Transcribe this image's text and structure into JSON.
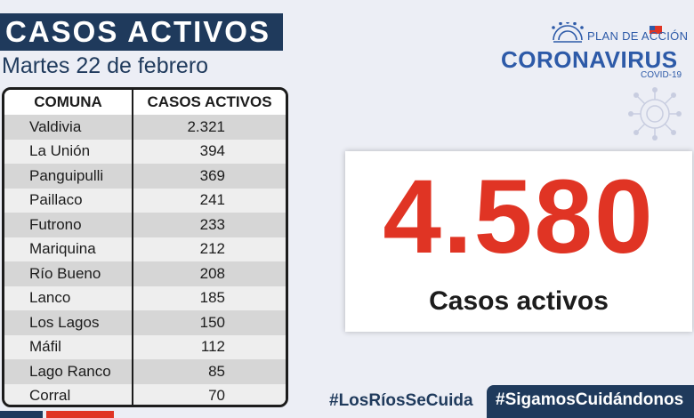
{
  "header": {
    "title": "CASOS ACTIVOS",
    "date": "Martes 22 de febrero"
  },
  "table": {
    "headers": [
      "COMUNA",
      "CASOS ACTIVOS"
    ],
    "rows": [
      {
        "comuna": "Valdivia",
        "casos": "2.321"
      },
      {
        "comuna": "La Unión",
        "casos": "394"
      },
      {
        "comuna": "Panguipulli",
        "casos": "369"
      },
      {
        "comuna": "Paillaco",
        "casos": "241"
      },
      {
        "comuna": "Futrono",
        "casos": "233"
      },
      {
        "comuna": "Mariquina",
        "casos": "212"
      },
      {
        "comuna": "Río Bueno",
        "casos": "208"
      },
      {
        "comuna": "Lanco",
        "casos": "185"
      },
      {
        "comuna": "Los Lagos",
        "casos": "150"
      },
      {
        "comuna": "Máfil",
        "casos": "112"
      },
      {
        "comuna": "Lago Ranco",
        "casos": "85"
      },
      {
        "comuna": "Corral",
        "casos": "70"
      }
    ]
  },
  "logo": {
    "plan": "PLAN DE ACCIÓN",
    "name": "CORONAVIRUS",
    "sub": "COVID-19"
  },
  "total": {
    "number": "4.580",
    "label": "Casos activos"
  },
  "footer": {
    "hashtag_left": "#LosRíosSeCuida",
    "hashtag_right": "#SigamosCuidándonos"
  },
  "colors": {
    "navy": "#1f3a5c",
    "accent_red": "#e03424",
    "logo_blue": "#2d5aa8"
  }
}
